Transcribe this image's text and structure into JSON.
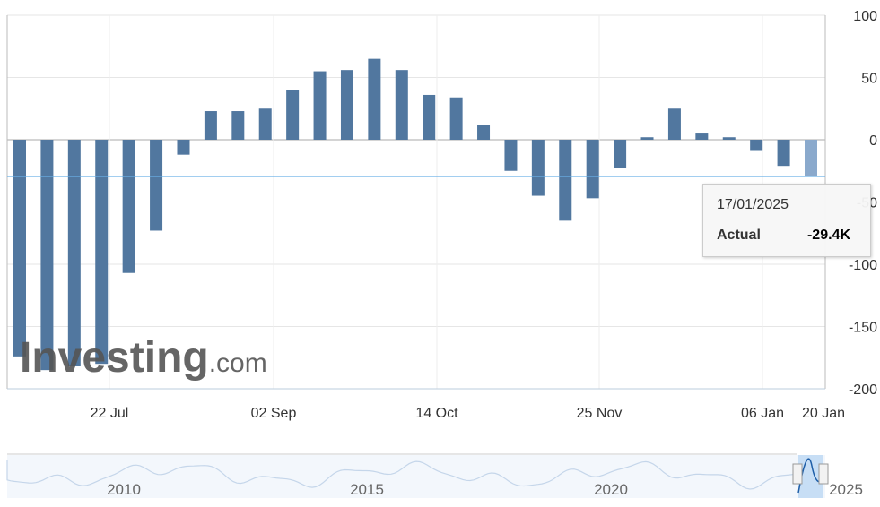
{
  "chart_data": {
    "type": "bar",
    "ylim": [
      -200,
      100
    ],
    "yticks": [
      "100",
      "50",
      "0",
      "-50",
      "-100",
      "-150",
      "-200"
    ],
    "ytick_values": [
      100,
      50,
      0,
      -50,
      -100,
      -150,
      -200
    ],
    "xticks": [
      "22 Jul",
      "02 Sep",
      "14 Oct",
      "25 Nov",
      "06 Jan",
      "20 Jan"
    ],
    "values": [
      -174,
      -185,
      -182,
      -180,
      -107,
      -73,
      -12,
      23,
      23,
      25,
      40,
      55,
      56,
      65,
      56,
      36,
      34,
      12,
      -25,
      -45,
      -65,
      -47,
      -23,
      2,
      25,
      5,
      2,
      -9,
      -21,
      -29.4
    ],
    "highlight_index": 29,
    "reference_line": -29.4,
    "bar_color": "#51779f",
    "highlight_color": "#8aa9cc",
    "grid": true,
    "tooltip": {
      "date": "17/01/2025",
      "label": "Actual",
      "value": "-29.4K"
    },
    "navigator": {
      "labels": [
        "2010",
        "2015",
        "2020",
        "2025"
      ]
    }
  },
  "brand": {
    "logo": "Investing.com",
    "logo_main": "Investing",
    "logo_suffix": ".com"
  }
}
